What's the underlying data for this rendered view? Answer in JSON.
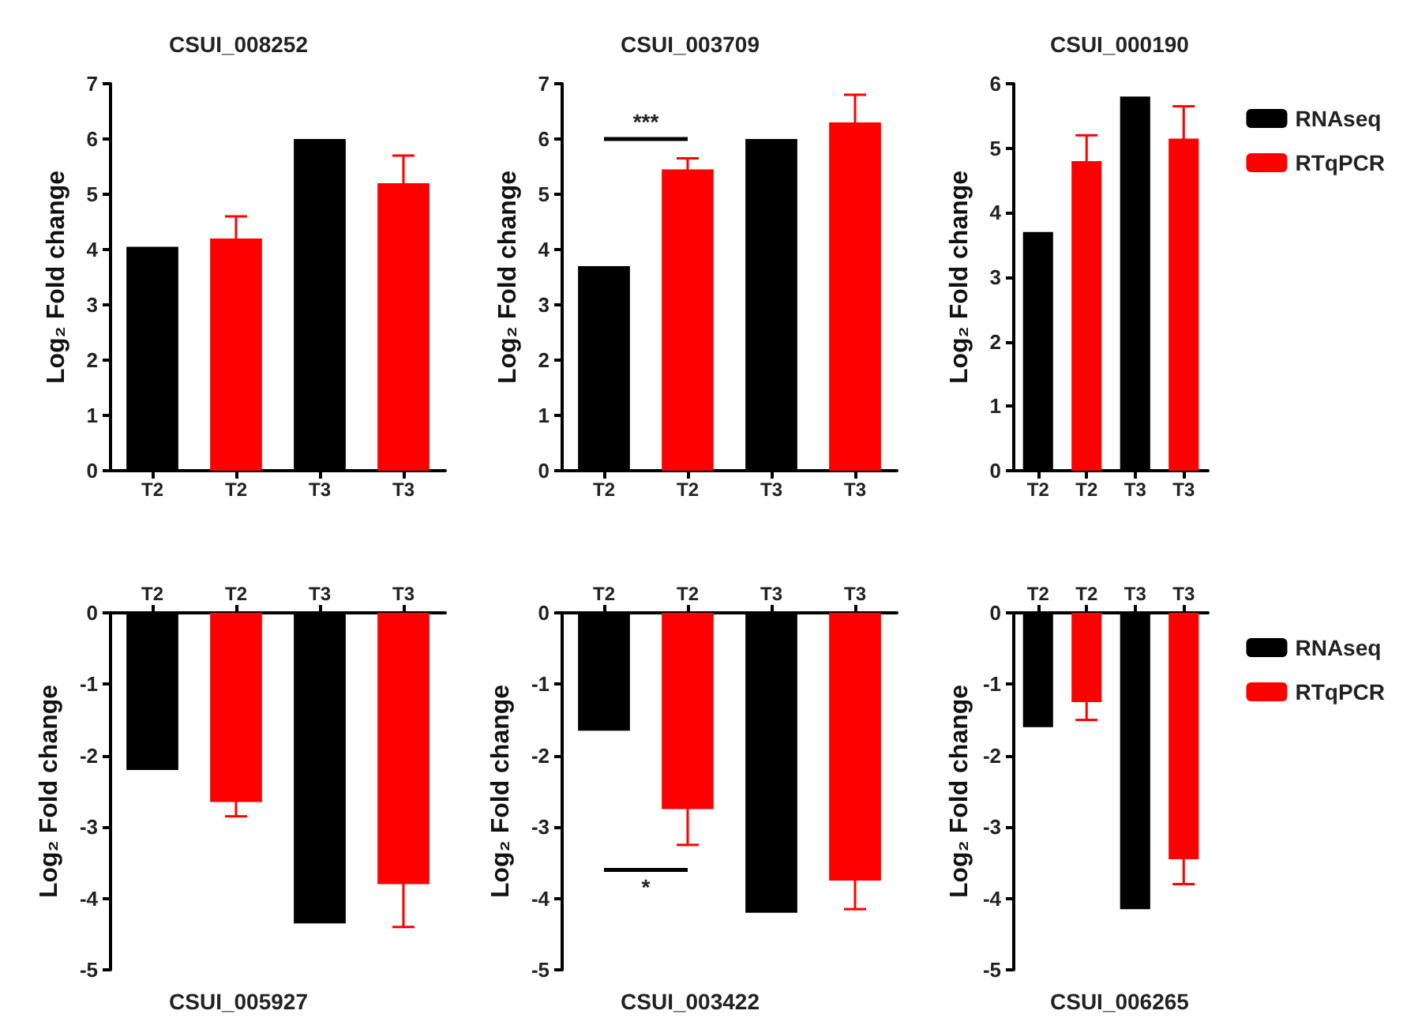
{
  "chart_data": [
    {
      "type": "bar",
      "title": "CSUI_008252",
      "ylabel": "Log₂ Fold change",
      "categories": [
        "T2",
        "T2",
        "T3",
        "T3"
      ],
      "ylim": [
        0,
        7
      ],
      "yticks": [
        0,
        1,
        2,
        3,
        4,
        5,
        6,
        7
      ],
      "grid": false,
      "legend": false,
      "series": [
        {
          "color": "#000000",
          "values": [
            4.05,
            null,
            6.0,
            null
          ]
        },
        {
          "color": "#ff0000",
          "values": [
            null,
            4.2,
            null,
            5.2
          ],
          "errors": [
            null,
            0.4,
            null,
            0.5
          ]
        }
      ]
    },
    {
      "type": "bar",
      "title": "CSUI_003709",
      "ylabel": "Log₂ Fold change",
      "categories": [
        "T2",
        "T2",
        "T3",
        "T3"
      ],
      "ylim": [
        0,
        7
      ],
      "yticks": [
        0,
        1,
        2,
        3,
        4,
        5,
        6,
        7
      ],
      "grid": false,
      "legend": false,
      "annotations": [
        "***"
      ],
      "series": [
        {
          "color": "#000000",
          "values": [
            3.7,
            null,
            6.0,
            null
          ]
        },
        {
          "color": "#ff0000",
          "values": [
            null,
            5.45,
            null,
            6.3
          ],
          "errors": [
            null,
            0.2,
            null,
            0.5
          ]
        }
      ]
    },
    {
      "type": "bar",
      "title": "CSUI_000190",
      "ylabel": "Log₂ Fold change",
      "categories": [
        "T2",
        "T2",
        "T3",
        "T3"
      ],
      "ylim": [
        0,
        6
      ],
      "yticks": [
        0,
        1,
        2,
        3,
        4,
        5,
        6
      ],
      "grid": false,
      "legend": "right",
      "series": [
        {
          "name": "RNAseq",
          "color": "#000000",
          "values": [
            3.7,
            null,
            5.8,
            null
          ]
        },
        {
          "name": "RTqPCR",
          "color": "#ff0000",
          "values": [
            null,
            4.8,
            null,
            5.15
          ],
          "errors": [
            null,
            0.4,
            null,
            0.5
          ]
        }
      ]
    },
    {
      "type": "bar",
      "title": "CSUI_005927",
      "ylabel": "Log₂ Fold change",
      "categories": [
        "T2",
        "T2",
        "T3",
        "T3"
      ],
      "ylim": [
        -5,
        0
      ],
      "yticks": [
        -5,
        -4,
        -3,
        -2,
        -1,
        0
      ],
      "grid": false,
      "legend": false,
      "series": [
        {
          "color": "#000000",
          "values": [
            -2.2,
            null,
            -4.35,
            null
          ]
        },
        {
          "color": "#ff0000",
          "values": [
            null,
            -2.65,
            null,
            -3.8
          ],
          "errors": [
            null,
            0.2,
            null,
            0.6
          ]
        }
      ]
    },
    {
      "type": "bar",
      "title": "CSUI_003422",
      "ylabel": "Log₂ Fold change",
      "categories": [
        "T2",
        "T2",
        "T3",
        "T3"
      ],
      "ylim": [
        -5,
        0
      ],
      "yticks": [
        -5,
        -4,
        -3,
        -2,
        -1,
        0
      ],
      "grid": false,
      "legend": false,
      "annotations": [
        "*"
      ],
      "series": [
        {
          "color": "#000000",
          "values": [
            -1.65,
            null,
            -4.2,
            null
          ]
        },
        {
          "color": "#ff0000",
          "values": [
            null,
            -2.75,
            null,
            -3.75
          ],
          "errors": [
            null,
            0.5,
            null,
            0.4
          ]
        }
      ]
    },
    {
      "type": "bar",
      "title": "CSUI_006265",
      "ylabel": "Log₂ Fold change",
      "categories": [
        "T2",
        "T2",
        "T3",
        "T3"
      ],
      "ylim": [
        -5,
        0
      ],
      "yticks": [
        -5,
        -4,
        -3,
        -2,
        -1,
        0
      ],
      "grid": false,
      "legend": "right",
      "series": [
        {
          "name": "RNAseq",
          "color": "#000000",
          "values": [
            -1.6,
            null,
            -4.15,
            null
          ]
        },
        {
          "name": "RTqPCR",
          "color": "#ff0000",
          "values": [
            null,
            -1.25,
            null,
            -3.45
          ],
          "errors": [
            null,
            0.25,
            null,
            0.35
          ]
        }
      ]
    }
  ]
}
